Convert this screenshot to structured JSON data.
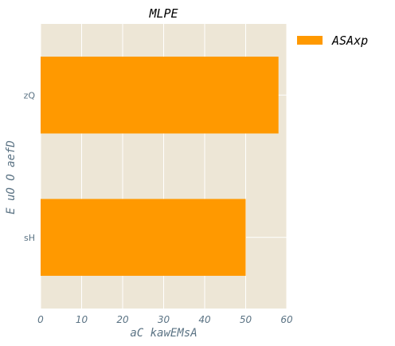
{
  "chart_data": {
    "type": "bar",
    "orientation": "horizontal",
    "title": "MLPE",
    "xlabel": "aC kawEMsA",
    "ylabel": "E uO O  aefD",
    "categories": [
      "zQ",
      "sH"
    ],
    "series": [
      {
        "name": "ASAxp",
        "values": [
          58,
          50
        ],
        "color": "#ff9900"
      }
    ],
    "xlim": [
      0,
      60
    ],
    "xticks": [
      "0",
      "10",
      "20",
      "30",
      "40",
      "50",
      "60"
    ],
    "grid": true,
    "legend": "outside-top-right",
    "background": "#ede6d6"
  }
}
